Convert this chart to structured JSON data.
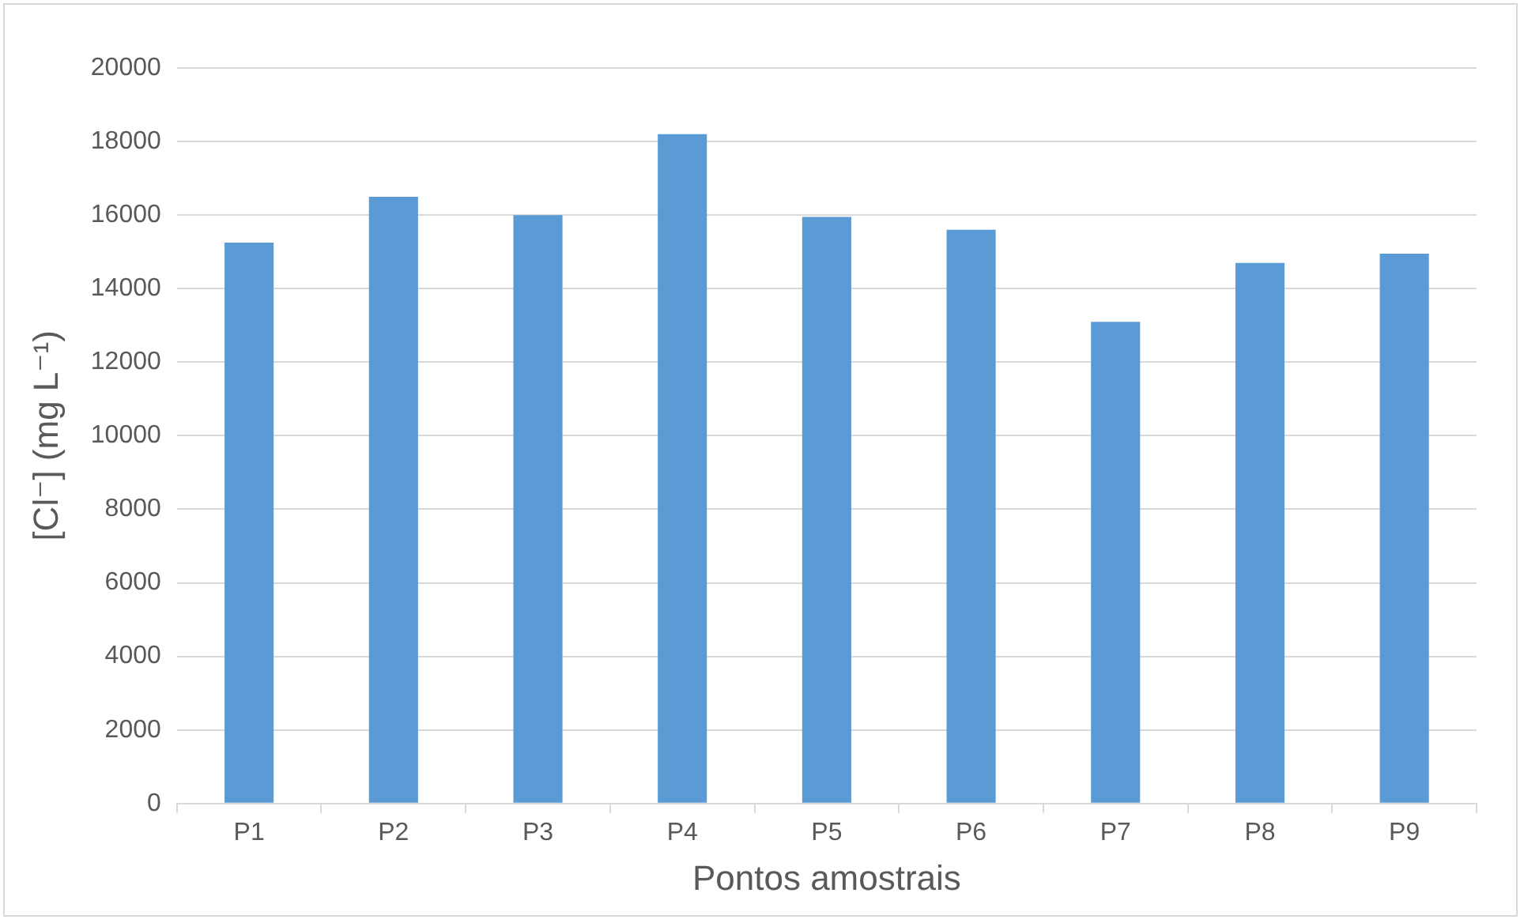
{
  "chart_data": {
    "type": "bar",
    "xlabel": "Pontos amostrais",
    "ylabel": "[Cl⁻] (mg L⁻¹)",
    "categories": [
      "P1",
      "P2",
      "P3",
      "P4",
      "P5",
      "P6",
      "P7",
      "P8",
      "P9"
    ],
    "values": [
      15250,
      16500,
      16000,
      18200,
      15950,
      15600,
      13100,
      14700,
      14950
    ],
    "color": "#5b9bd5",
    "ylim": [
      0,
      20000
    ],
    "yticks": [
      0,
      2000,
      4000,
      6000,
      8000,
      10000,
      12000,
      14000,
      16000,
      18000,
      20000
    ],
    "grid": "y",
    "legend": false
  }
}
